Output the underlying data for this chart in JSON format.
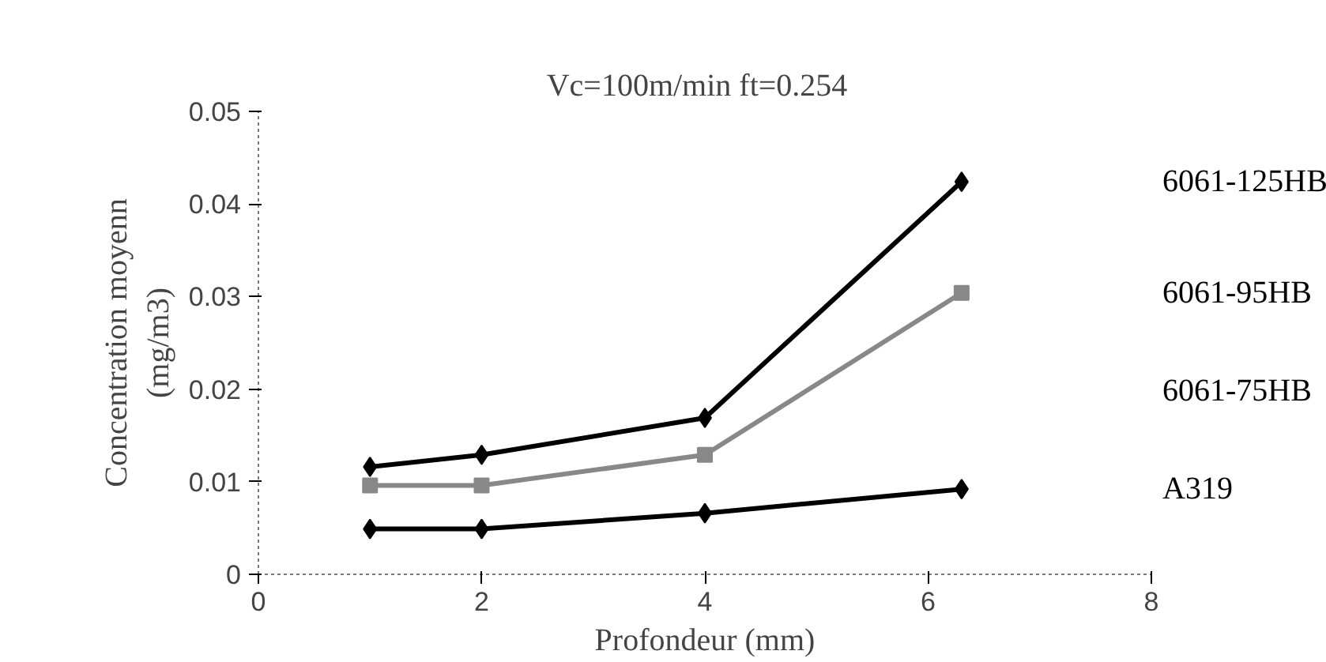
{
  "chart_data": {
    "type": "line",
    "title": "Vc=100m/min   ft=0.254",
    "xlabel": "Profondeur (mm)",
    "ylabel": "Concentration moyenn\n(mg/m3)",
    "xlim": [
      0,
      8
    ],
    "xticks": [
      0,
      2,
      4,
      6,
      8
    ],
    "ylim": [
      0,
      0.05
    ],
    "yticks": [
      0,
      0.01,
      0.02,
      0.03,
      0.04,
      0.05
    ],
    "x": [
      1,
      2,
      4,
      6.3
    ],
    "grid": false,
    "series": [
      {
        "name": "6061-125HB",
        "color": "#000000",
        "marker": "diamond",
        "values": [
          0.0116,
          0.0129,
          0.0169,
          0.0424
        ]
      },
      {
        "name": "6061-95HB",
        "color": "#888888",
        "marker": "square",
        "values": [
          0.0096,
          0.0096,
          0.0129,
          0.0304
        ]
      },
      {
        "name": "6061-75HB",
        "values": [
          null,
          null,
          null,
          null
        ]
      },
      {
        "name": "A319",
        "color": "#000000",
        "marker": "diamond",
        "values": [
          0.0049,
          0.0049,
          0.0066,
          0.0092
        ]
      }
    ]
  }
}
